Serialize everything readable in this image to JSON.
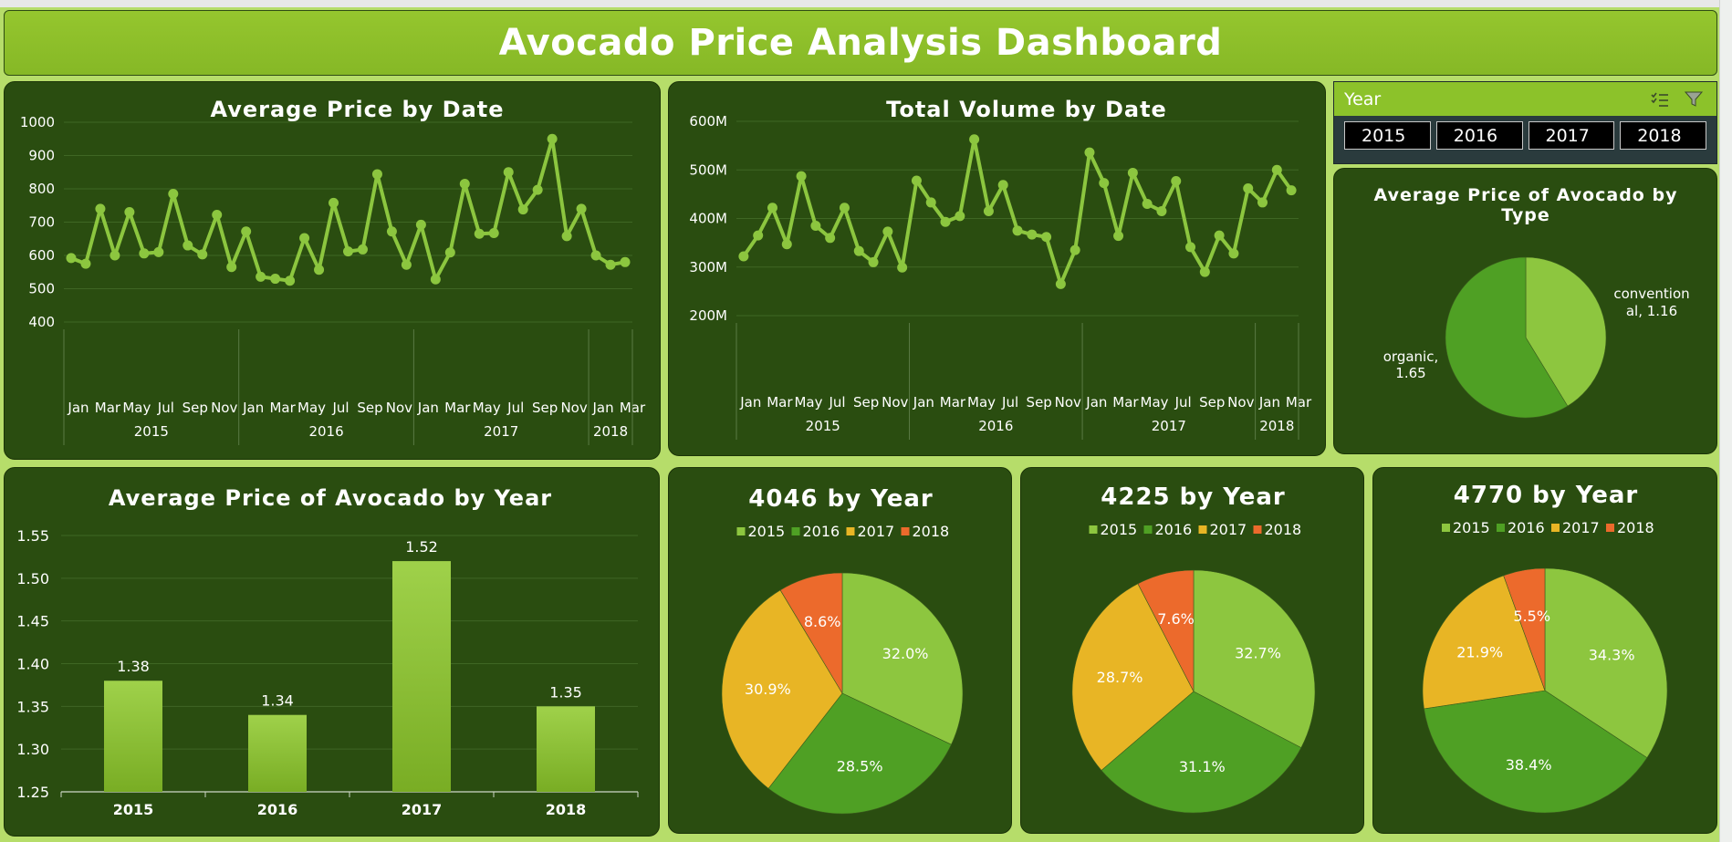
{
  "dashboard": {
    "title": "Avocado Price Analysis Dashboard"
  },
  "slicer": {
    "title": "Year",
    "items": [
      "2015",
      "2016",
      "2017",
      "2018"
    ],
    "icons": [
      "multi-select-icon",
      "clear-filter-icon"
    ]
  },
  "chart_data": [
    {
      "id": "avg-price-by-date",
      "type": "line",
      "title": "Average Price by Date",
      "xlabel": "",
      "ylabel": "",
      "ylim": [
        400,
        1000
      ],
      "yticks": [
        400,
        500,
        600,
        700,
        800,
        900,
        1000
      ],
      "ytick_labels": [
        "400",
        "500",
        "600",
        "700",
        "800",
        "900",
        "1000"
      ],
      "month_labels": [
        "Jan",
        "Mar",
        "May",
        "Jul",
        "Sep",
        "Nov",
        "Jan",
        "Mar",
        "May",
        "Jul",
        "Sep",
        "Nov",
        "Jan",
        "Mar",
        "May",
        "Jul",
        "Sep",
        "Nov",
        "Jan",
        "Mar"
      ],
      "year_groups": [
        {
          "label": "2015",
          "months": 12
        },
        {
          "label": "2016",
          "months": 12
        },
        {
          "label": "2017",
          "months": 12
        },
        {
          "label": "2018",
          "months": 3
        }
      ],
      "grid": true,
      "values": [
        592,
        575,
        740,
        600,
        730,
        606,
        610,
        785,
        630,
        603,
        722,
        565,
        672,
        536,
        530,
        524,
        652,
        557,
        758,
        612,
        618,
        844,
        672,
        572,
        692,
        528,
        609,
        815,
        665,
        667,
        850,
        738,
        797,
        950,
        658,
        740,
        600,
        572,
        580
      ],
      "color": "#8cc63f"
    },
    {
      "id": "total-volume-by-date",
      "type": "line",
      "title": "Total Volume by Date",
      "xlabel": "",
      "ylabel": "",
      "ylim": [
        200,
        600
      ],
      "yticks": [
        200,
        300,
        400,
        500,
        600
      ],
      "ytick_labels": [
        "200M",
        "300M",
        "400M",
        "500M",
        "600M"
      ],
      "month_labels": [
        "Jan",
        "Mar",
        "May",
        "Jul",
        "Sep",
        "Nov",
        "Jan",
        "Mar",
        "May",
        "Jul",
        "Sep",
        "Nov",
        "Jan",
        "Mar",
        "May",
        "Jul",
        "Sep",
        "Nov",
        "Jan",
        "Mar"
      ],
      "year_groups": [
        {
          "label": "2015",
          "months": 12
        },
        {
          "label": "2016",
          "months": 12
        },
        {
          "label": "2017",
          "months": 12
        },
        {
          "label": "2018",
          "months": 3
        }
      ],
      "grid": true,
      "values": [
        322,
        365,
        422,
        347,
        487,
        385,
        360,
        422,
        333,
        310,
        373,
        299,
        478,
        433,
        393,
        405,
        563,
        415,
        469,
        375,
        367,
        362,
        265,
        335,
        536,
        473,
        364,
        494,
        430,
        415,
        477,
        341,
        290,
        365,
        328,
        462,
        433,
        500,
        458
      ],
      "color": "#8cc63f"
    },
    {
      "id": "avg-price-by-type",
      "type": "pie",
      "title": "Average Price of Avocado by Type",
      "categories": [
        "conventional",
        "organic"
      ],
      "values": [
        1.16,
        1.65
      ],
      "labels": [
        "convention al, 1.16",
        "organic, 1.65"
      ],
      "colors": [
        "#8dc63f",
        "#4fa024"
      ]
    },
    {
      "id": "avg-price-by-year",
      "type": "bar",
      "title": "Average Price of Avocado by Year",
      "categories": [
        "2015",
        "2016",
        "2017",
        "2018"
      ],
      "values": [
        1.38,
        1.34,
        1.52,
        1.35
      ],
      "data_labels": [
        "1.38",
        "1.34",
        "1.52",
        "1.35"
      ],
      "xlabel": "",
      "ylabel": "",
      "ylim": [
        1.25,
        1.55
      ],
      "yticks": [
        1.25,
        1.3,
        1.35,
        1.4,
        1.45,
        1.5,
        1.55
      ],
      "ytick_labels": [
        "1.25",
        "1.30",
        "1.35",
        "1.40",
        "1.45",
        "1.50",
        "1.55"
      ],
      "grid": true,
      "color": "#8dc63f"
    },
    {
      "id": "plu-4046-by-year",
      "type": "pie",
      "title": "4046 by Year",
      "categories": [
        "2015",
        "2016",
        "2017",
        "2018"
      ],
      "values": [
        32.0,
        28.5,
        30.9,
        8.6
      ],
      "labels": [
        "32.0%",
        "28.5%",
        "30.9%",
        "8.6%"
      ],
      "legend": "top",
      "colors": [
        "#8dc63f",
        "#4fa024",
        "#e8b525",
        "#ec6a2c"
      ]
    },
    {
      "id": "plu-4225-by-year",
      "type": "pie",
      "title": "4225 by Year",
      "categories": [
        "2015",
        "2016",
        "2017",
        "2018"
      ],
      "values": [
        32.7,
        31.1,
        28.7,
        7.6
      ],
      "labels": [
        "32.7%",
        "31.1%",
        "28.7%",
        "7.6%"
      ],
      "legend": "top",
      "colors": [
        "#8dc63f",
        "#4fa024",
        "#e8b525",
        "#ec6a2c"
      ]
    },
    {
      "id": "plu-4770-by-year",
      "type": "pie",
      "title": "4770 by Year",
      "categories": [
        "2015",
        "2016",
        "2017",
        "2018"
      ],
      "values": [
        34.3,
        38.4,
        21.9,
        5.5
      ],
      "labels": [
        "34.3%",
        "38.4%",
        "21.9%",
        "5.5%"
      ],
      "legend": "top",
      "colors": [
        "#8dc63f",
        "#4fa024",
        "#e8b525",
        "#ec6a2c"
      ]
    }
  ]
}
